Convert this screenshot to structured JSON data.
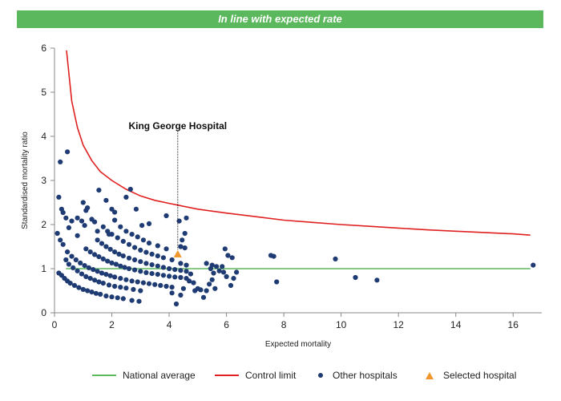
{
  "header": {
    "title": "In line with expected rate"
  },
  "colors": {
    "banner": "#5cb85c",
    "national_average": "#5cb85c",
    "control_limit": "#e02020",
    "other_hospitals": "#1f3b73",
    "selected_hospital": "#f0962a"
  },
  "chart_data": {
    "type": "scatter",
    "title": "",
    "xlabel": "Expected mortality",
    "ylabel": "Standardised mortality ratio",
    "xlim": [
      0,
      17
    ],
    "ylim": [
      0,
      6
    ],
    "xticks": [
      "0",
      "2",
      "4",
      "6",
      "8",
      "10",
      "12",
      "14",
      "16"
    ],
    "yticks": [
      "0",
      "1",
      "2",
      "3",
      "4",
      "5",
      "6"
    ],
    "grid": false,
    "legend_position": "bottom",
    "annotation": {
      "label": "King George Hospital",
      "x": 4.3,
      "y": 1.33
    },
    "series": [
      {
        "name": "National average",
        "kind": "line",
        "points": [
          [
            0.4,
            1.0
          ],
          [
            16.6,
            1.0
          ]
        ]
      },
      {
        "name": "Control limit",
        "kind": "line",
        "points": [
          [
            0.42,
            5.95
          ],
          [
            0.6,
            4.8
          ],
          [
            0.8,
            4.2
          ],
          [
            1.0,
            3.8
          ],
          [
            1.3,
            3.45
          ],
          [
            1.6,
            3.2
          ],
          [
            2.0,
            3.0
          ],
          [
            2.5,
            2.8
          ],
          [
            3.0,
            2.65
          ],
          [
            3.5,
            2.55
          ],
          [
            4.0,
            2.48
          ],
          [
            5.0,
            2.35
          ],
          [
            6.0,
            2.26
          ],
          [
            7.0,
            2.18
          ],
          [
            8.0,
            2.1
          ],
          [
            9.0,
            2.05
          ],
          [
            10.0,
            2.0
          ],
          [
            11.0,
            1.96
          ],
          [
            12.0,
            1.92
          ],
          [
            13.0,
            1.88
          ],
          [
            14.0,
            1.85
          ],
          [
            15.0,
            1.82
          ],
          [
            16.0,
            1.79
          ],
          [
            16.6,
            1.76
          ]
        ]
      },
      {
        "name": "Other hospitals",
        "kind": "scatter",
        "points": [
          [
            0.15,
            0.9
          ],
          [
            0.25,
            0.85
          ],
          [
            0.35,
            0.78
          ],
          [
            0.45,
            0.72
          ],
          [
            0.55,
            0.67
          ],
          [
            0.7,
            0.62
          ],
          [
            0.85,
            0.57
          ],
          [
            1.0,
            0.53
          ],
          [
            1.15,
            0.5
          ],
          [
            1.3,
            0.47
          ],
          [
            1.45,
            0.44
          ],
          [
            1.6,
            0.42
          ],
          [
            1.8,
            0.38
          ],
          [
            2.0,
            0.36
          ],
          [
            2.2,
            0.34
          ],
          [
            2.4,
            0.32
          ],
          [
            2.7,
            0.28
          ],
          [
            2.95,
            0.26
          ],
          [
            0.4,
            1.2
          ],
          [
            0.5,
            1.1
          ],
          [
            0.65,
            1.02
          ],
          [
            0.8,
            0.95
          ],
          [
            0.95,
            0.88
          ],
          [
            1.1,
            0.82
          ],
          [
            1.25,
            0.78
          ],
          [
            1.4,
            0.74
          ],
          [
            1.55,
            0.7
          ],
          [
            1.7,
            0.67
          ],
          [
            1.9,
            0.63
          ],
          [
            2.1,
            0.6
          ],
          [
            2.3,
            0.58
          ],
          [
            2.5,
            0.56
          ],
          [
            2.75,
            0.53
          ],
          [
            3.0,
            0.5
          ],
          [
            0.45,
            1.38
          ],
          [
            0.6,
            1.28
          ],
          [
            0.75,
            1.2
          ],
          [
            0.9,
            1.13
          ],
          [
            1.05,
            1.07
          ],
          [
            1.2,
            1.02
          ],
          [
            1.35,
            0.98
          ],
          [
            1.5,
            0.94
          ],
          [
            1.65,
            0.9
          ],
          [
            1.8,
            0.87
          ],
          [
            1.95,
            0.84
          ],
          [
            2.1,
            0.81
          ],
          [
            2.3,
            0.78
          ],
          [
            2.5,
            0.75
          ],
          [
            2.7,
            0.72
          ],
          [
            2.9,
            0.7
          ],
          [
            3.1,
            0.68
          ],
          [
            3.3,
            0.66
          ],
          [
            3.5,
            0.64
          ],
          [
            3.7,
            0.62
          ],
          [
            3.9,
            0.6
          ],
          [
            4.1,
            0.58
          ],
          [
            1.1,
            1.45
          ],
          [
            1.25,
            1.38
          ],
          [
            1.4,
            1.32
          ],
          [
            1.55,
            1.27
          ],
          [
            1.7,
            1.22
          ],
          [
            1.85,
            1.17
          ],
          [
            2.0,
            1.13
          ],
          [
            2.15,
            1.1
          ],
          [
            2.3,
            1.06
          ],
          [
            2.45,
            1.03
          ],
          [
            2.6,
            1.0
          ],
          [
            2.8,
            0.97
          ],
          [
            3.0,
            0.94
          ],
          [
            3.2,
            0.91
          ],
          [
            3.4,
            0.89
          ],
          [
            3.6,
            0.87
          ],
          [
            3.8,
            0.85
          ],
          [
            4.0,
            0.83
          ],
          [
            4.2,
            0.81
          ],
          [
            4.4,
            0.8
          ],
          [
            4.6,
            0.78
          ],
          [
            1.5,
            1.65
          ],
          [
            1.65,
            1.57
          ],
          [
            1.8,
            1.5
          ],
          [
            1.95,
            1.44
          ],
          [
            2.1,
            1.38
          ],
          [
            2.25,
            1.33
          ],
          [
            2.4,
            1.29
          ],
          [
            2.6,
            1.24
          ],
          [
            2.8,
            1.2
          ],
          [
            3.0,
            1.16
          ],
          [
            3.2,
            1.12
          ],
          [
            3.4,
            1.09
          ],
          [
            3.6,
            1.06
          ],
          [
            3.8,
            1.03
          ],
          [
            4.0,
            1.0
          ],
          [
            4.2,
            0.98
          ],
          [
            4.4,
            0.96
          ],
          [
            4.6,
            0.94
          ],
          [
            4.75,
            0.88
          ],
          [
            1.7,
            1.95
          ],
          [
            1.85,
            1.85
          ],
          [
            2.0,
            1.78
          ],
          [
            2.2,
            1.7
          ],
          [
            2.4,
            1.62
          ],
          [
            2.6,
            1.55
          ],
          [
            2.8,
            1.48
          ],
          [
            3.0,
            1.42
          ],
          [
            3.2,
            1.37
          ],
          [
            3.4,
            1.33
          ],
          [
            3.6,
            1.29
          ],
          [
            3.8,
            1.25
          ],
          [
            4.1,
            1.2
          ],
          [
            4.4,
            1.12
          ],
          [
            4.6,
            1.08
          ],
          [
            2.1,
            2.1
          ],
          [
            2.3,
            1.95
          ],
          [
            2.5,
            1.85
          ],
          [
            2.7,
            1.78
          ],
          [
            2.9,
            1.72
          ],
          [
            3.1,
            1.65
          ],
          [
            3.3,
            1.58
          ],
          [
            3.6,
            1.52
          ],
          [
            3.9,
            1.45
          ],
          [
            0.1,
            1.8
          ],
          [
            0.2,
            1.65
          ],
          [
            0.3,
            1.55
          ],
          [
            0.5,
            1.93
          ],
          [
            0.6,
            2.08
          ],
          [
            0.25,
            2.35
          ],
          [
            0.3,
            2.27
          ],
          [
            0.4,
            2.15
          ],
          [
            0.15,
            2.62
          ],
          [
            0.2,
            3.42
          ],
          [
            0.45,
            3.65
          ],
          [
            0.8,
            1.75
          ],
          [
            0.8,
            2.15
          ],
          [
            0.95,
            2.08
          ],
          [
            1.0,
            2.5
          ],
          [
            1.15,
            2.38
          ],
          [
            1.1,
            2.32
          ],
          [
            1.05,
            1.98
          ],
          [
            1.3,
            2.12
          ],
          [
            1.4,
            2.06
          ],
          [
            1.55,
            2.78
          ],
          [
            1.5,
            1.85
          ],
          [
            1.8,
            2.55
          ],
          [
            1.9,
            1.78
          ],
          [
            2.0,
            2.35
          ],
          [
            2.1,
            2.28
          ],
          [
            2.5,
            2.62
          ],
          [
            2.65,
            2.8
          ],
          [
            2.85,
            2.35
          ],
          [
            3.05,
            1.98
          ],
          [
            3.3,
            2.02
          ],
          [
            3.9,
            2.2
          ],
          [
            4.35,
            2.08
          ],
          [
            4.55,
            1.8
          ],
          [
            4.6,
            2.15
          ],
          [
            4.45,
            1.65
          ],
          [
            4.4,
            1.5
          ],
          [
            4.55,
            1.47
          ],
          [
            4.1,
            0.45
          ],
          [
            4.25,
            0.2
          ],
          [
            4.4,
            0.4
          ],
          [
            4.5,
            0.55
          ],
          [
            4.7,
            0.72
          ],
          [
            4.85,
            0.68
          ],
          [
            4.9,
            0.5
          ],
          [
            5.0,
            0.55
          ],
          [
            5.1,
            0.52
          ],
          [
            5.2,
            0.35
          ],
          [
            5.3,
            0.5
          ],
          [
            5.4,
            0.65
          ],
          [
            5.5,
            0.75
          ],
          [
            5.6,
            0.55
          ],
          [
            5.45,
            1.0
          ],
          [
            5.55,
            0.9
          ],
          [
            5.65,
            1.05
          ],
          [
            5.75,
            0.95
          ],
          [
            5.3,
            1.12
          ],
          [
            5.5,
            1.08
          ],
          [
            5.85,
            1.05
          ],
          [
            5.9,
            0.92
          ],
          [
            6.0,
            0.82
          ],
          [
            6.15,
            0.62
          ],
          [
            6.25,
            0.78
          ],
          [
            6.35,
            0.92
          ],
          [
            5.95,
            1.45
          ],
          [
            6.05,
            1.3
          ],
          [
            6.2,
            1.25
          ],
          [
            7.55,
            1.3
          ],
          [
            7.65,
            1.28
          ],
          [
            7.75,
            0.7
          ],
          [
            9.8,
            1.22
          ],
          [
            10.5,
            0.8
          ],
          [
            11.25,
            0.74
          ],
          [
            16.7,
            1.08
          ]
        ]
      },
      {
        "name": "Selected hospital",
        "kind": "triangle",
        "points": [
          [
            4.3,
            1.33
          ]
        ]
      }
    ]
  }
}
